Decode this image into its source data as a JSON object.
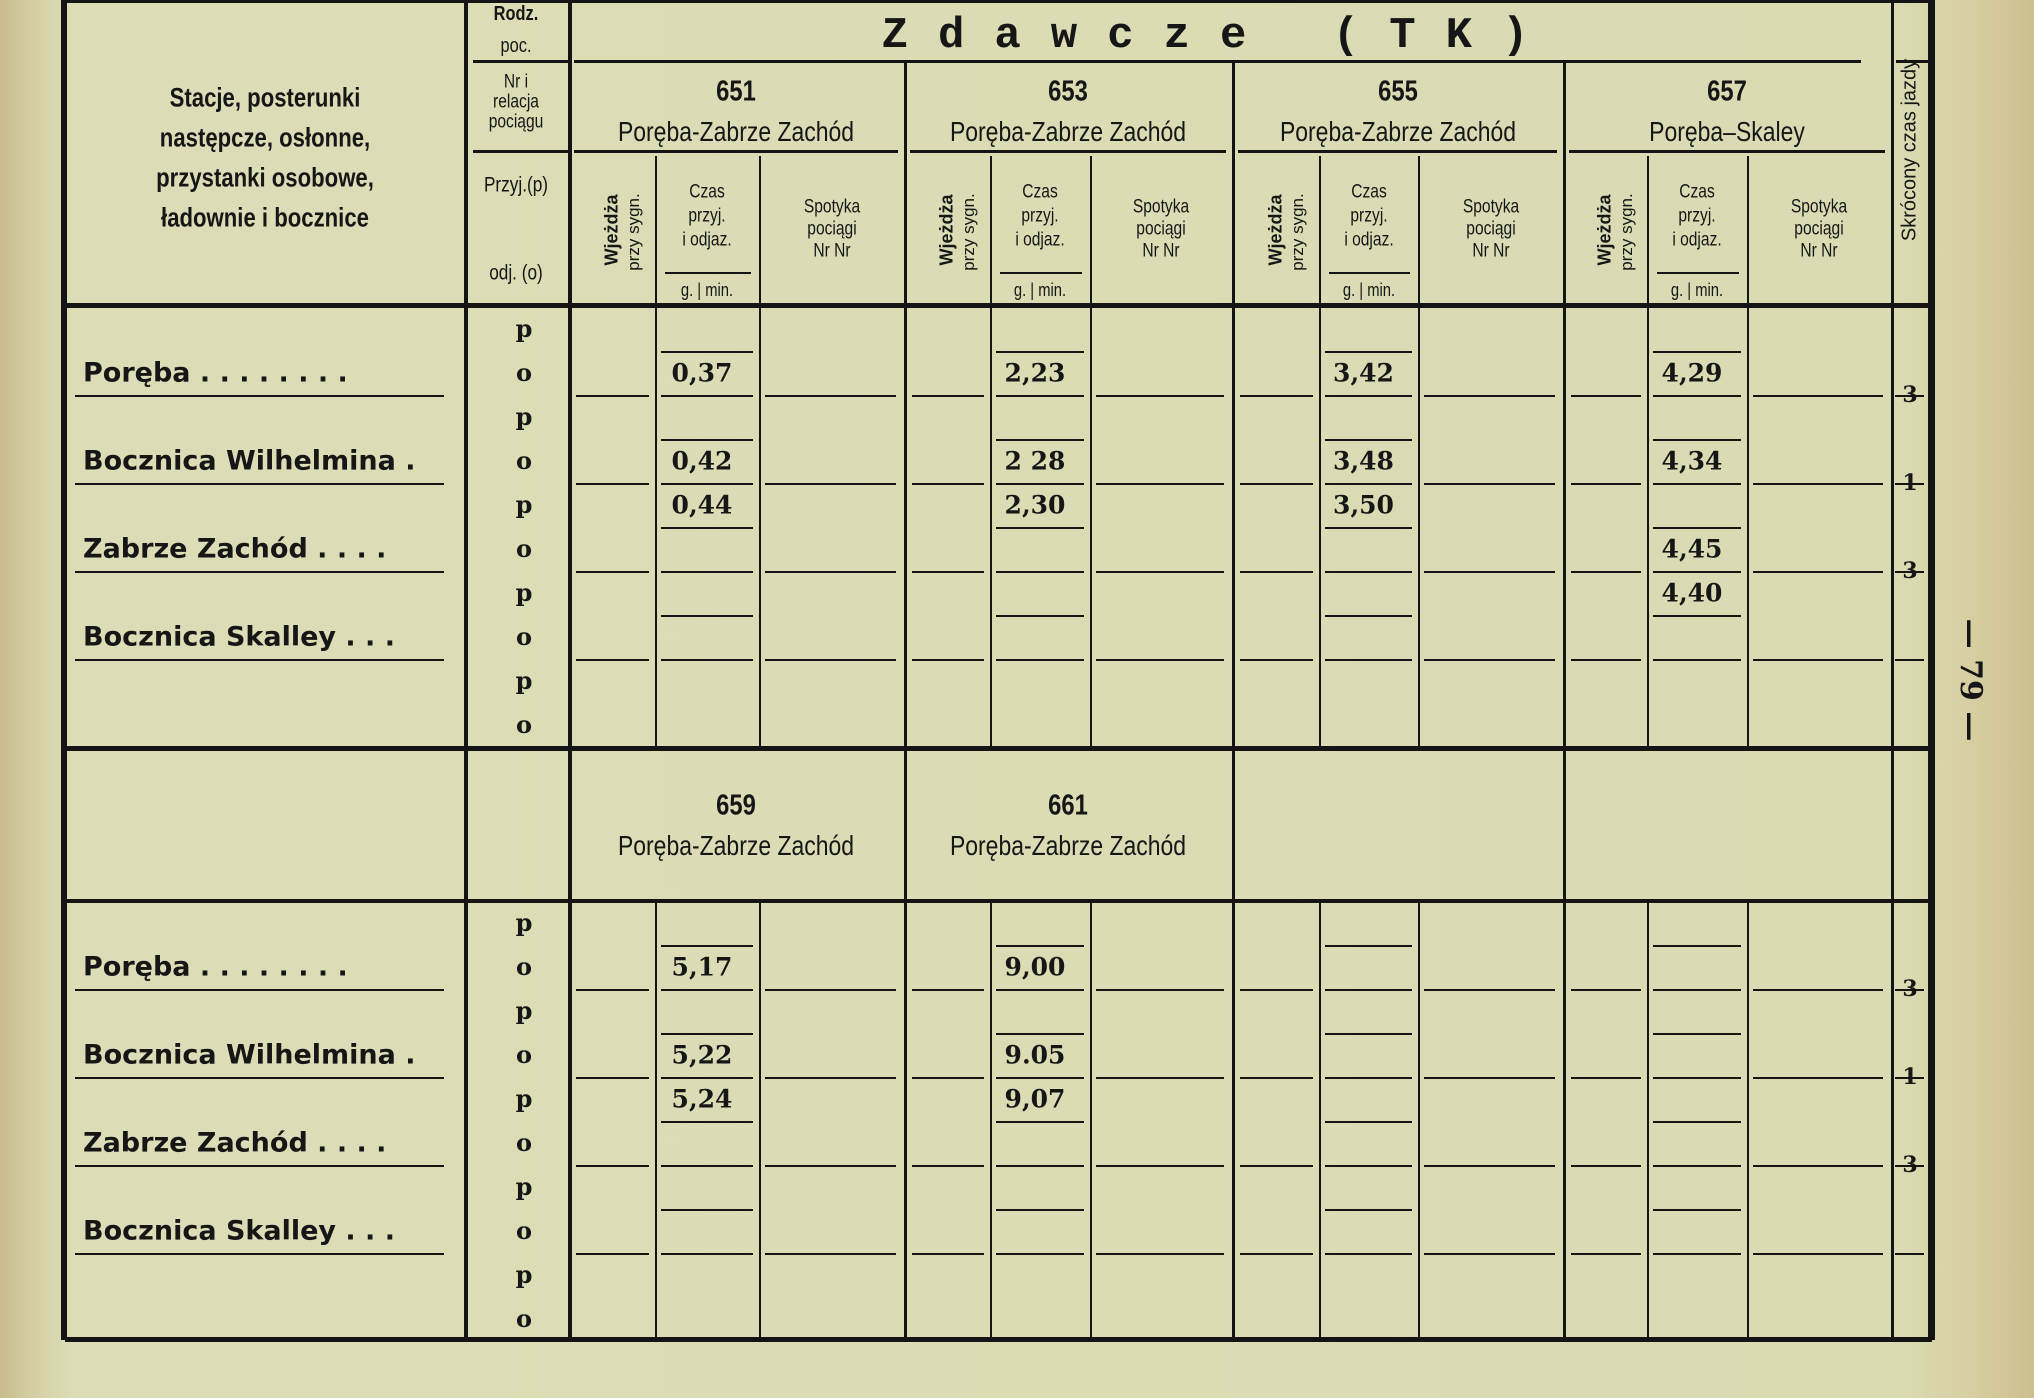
{
  "title": "Zdawcze (TK)",
  "page_number": "— 79 —",
  "header": {
    "stations_label": [
      "Stacje, posterunki",
      "następcze, osłonne,",
      "przystanki osobowe,",
      "ładownie i bocznice"
    ],
    "rodz_poc": [
      "Rodz.",
      "poc."
    ],
    "nr_relacja": [
      "Nr i",
      "relacja",
      "pociągu"
    ],
    "przyj": "Przyj.(p)",
    "odj": "odj. (o)",
    "wjezdza": [
      "Wjeżdża",
      "przy sygn."
    ],
    "czas": [
      "Czas",
      "przyj.",
      "i odjaz."
    ],
    "czas_units": "g. | min.",
    "spotyka": [
      "Spotyka",
      "pociągi",
      "Nr Nr"
    ],
    "skrocony": "Skrócony czas jazdy"
  },
  "sections": [
    {
      "trains": [
        {
          "number": "651",
          "relation": "Poręba-Zabrze Zachód"
        },
        {
          "number": "653",
          "relation": "Poręba-Zabrze Zachód"
        },
        {
          "number": "655",
          "relation": "Poręba-Zabrze Zachód"
        },
        {
          "number": "657",
          "relation": "Poręba–Skaley"
        }
      ],
      "rows": [
        {
          "station": "Poręba . . . . . . . .",
          "p": [
            "",
            "",
            "",
            ""
          ],
          "o": [
            "0,37",
            "2,23",
            "3,42",
            "4,29"
          ]
        },
        {
          "station": "Bocznica Wilhelmina  .",
          "p": [
            "",
            "",
            "",
            ""
          ],
          "o": [
            "0,42",
            "2 28",
            "3,48",
            "4,34"
          ]
        },
        {
          "station": "Zabrze Zachód . . . .",
          "p": [
            "0,44",
            "2,30",
            "3,50",
            ""
          ],
          "o": [
            "",
            "",
            "",
            "4,45"
          ]
        },
        {
          "station": "Bocznica Skalley . . .",
          "p": [
            "",
            "",
            "",
            "4,40"
          ],
          "o": [
            "",
            "",
            "",
            ""
          ]
        },
        {
          "station": "",
          "p": [
            "",
            "",
            "",
            ""
          ],
          "o": [
            "",
            "",
            "",
            ""
          ]
        }
      ],
      "skrocony": [
        "3",
        "1",
        "3"
      ]
    },
    {
      "trains": [
        {
          "number": "659",
          "relation": "Poręba-Zabrze Zachód"
        },
        {
          "number": "661",
          "relation": "Poręba-Zabrze Zachód"
        },
        {
          "number": "",
          "relation": ""
        },
        {
          "number": "",
          "relation": ""
        }
      ],
      "rows": [
        {
          "station": "Poręba . . . . . . . .",
          "p": [
            "",
            "",
            "",
            ""
          ],
          "o": [
            "5,17",
            "9,00",
            "",
            ""
          ]
        },
        {
          "station": "Bocznica Wilhelmina  .",
          "p": [
            "",
            "",
            "",
            ""
          ],
          "o": [
            "5,22",
            "9.05",
            "",
            ""
          ]
        },
        {
          "station": "Zabrze Zachód . . . .",
          "p": [
            "5,24",
            "9,07",
            "",
            ""
          ],
          "o": [
            "",
            "",
            "",
            ""
          ]
        },
        {
          "station": "Bocznica Skalley . . .",
          "p": [
            "",
            "",
            "",
            ""
          ],
          "o": [
            "",
            "",
            "",
            ""
          ]
        },
        {
          "station": "",
          "p": [
            "",
            "",
            "",
            ""
          ],
          "o": [
            "",
            "",
            "",
            ""
          ]
        }
      ],
      "skrocony": [
        "3",
        "1",
        "3"
      ]
    }
  ],
  "p_label": "p",
  "o_label": "o"
}
